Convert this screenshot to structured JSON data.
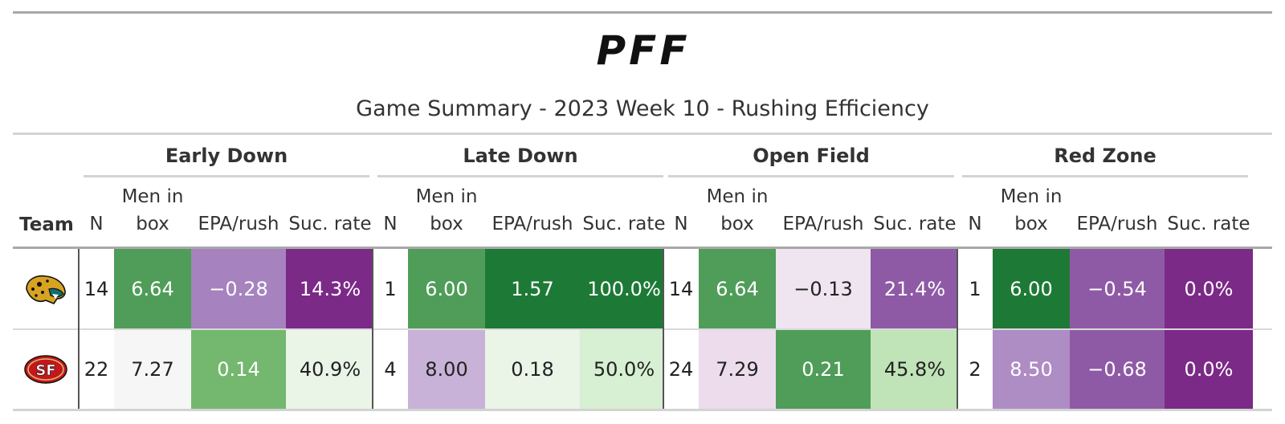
{
  "title": "Game Summary - 2023 Week 10 - Rushing Efficiency",
  "logo_text": "PFF",
  "team_header": "Team",
  "column_headers": [
    "N",
    "Men in box",
    "EPA/rush",
    "Suc. rate"
  ],
  "groups": [
    "Early Down",
    "Late Down",
    "Open Field",
    "Red Zone"
  ],
  "teams": [
    {
      "icon": "jaguars-logo-icon"
    },
    {
      "icon": "49ers-logo-icon"
    }
  ],
  "chart_data": {
    "type": "table",
    "title": "Game Summary - 2023 Week 10 - Rushing Efficiency",
    "column_groups": [
      "Early Down",
      "Late Down",
      "Open Field",
      "Red Zone"
    ],
    "columns": [
      "N",
      "Men in box",
      "EPA/rush",
      "Suc. rate"
    ],
    "rows": [
      {
        "team_icon": "jaguars-logo-icon",
        "cells": [
          [
            "14",
            "6.64",
            "−0.28",
            "14.3%"
          ],
          [
            "1",
            "6.00",
            "1.57",
            "100.0%"
          ],
          [
            "14",
            "6.64",
            "−0.13",
            "21.4%"
          ],
          [
            "1",
            "6.00",
            "−0.54",
            "0.0%"
          ]
        ],
        "colors": [
          [
            "#ffffff",
            "#4f9d58",
            "#a682be",
            "#7b2a87"
          ],
          [
            "#ffffff",
            "#4f9d58",
            "#1d7a36",
            "#1d7a36"
          ],
          [
            "#ffffff",
            "#4f9d58",
            "#efe5f0",
            "#8f5aa5"
          ],
          [
            "#ffffff",
            "#1d7a36",
            "#8f5aa5",
            "#7b2a87"
          ]
        ]
      },
      {
        "team_icon": "49ers-logo-icon",
        "cells": [
          [
            "22",
            "7.27",
            "0.14",
            "40.9%"
          ],
          [
            "4",
            "8.00",
            "0.18",
            "50.0%"
          ],
          [
            "24",
            "7.29",
            "0.21",
            "45.8%"
          ],
          [
            "2",
            "8.50",
            "−0.68",
            "0.0%"
          ]
        ],
        "colors": [
          [
            "#ffffff",
            "#f6f6f6",
            "#73b86e",
            "#eaf5e8"
          ],
          [
            "#ffffff",
            "#c9b2d7",
            "#eaf5e8",
            "#d7efd2"
          ],
          [
            "#ffffff",
            "#ecdcec",
            "#4f9d58",
            "#c0e3b8"
          ],
          [
            "#ffffff",
            "#ae8cc4",
            "#8f5aa5",
            "#7b2a87"
          ]
        ]
      }
    ]
  }
}
